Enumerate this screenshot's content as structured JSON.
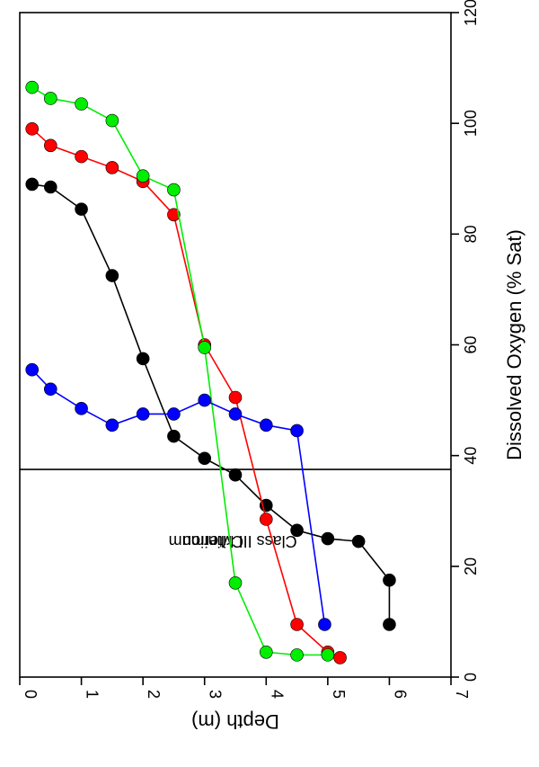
{
  "chart_data": {
    "type": "scatter",
    "orientation": "rotated-90-clockwise",
    "xlabel": "Depth (m)",
    "ylabel": "Dissolved Oxygen (% Sat)",
    "xlim": [
      0,
      7
    ],
    "ylim": [
      0,
      120
    ],
    "x_ticks": [
      "0",
      "1",
      "2",
      "3",
      "4",
      "5",
      "6",
      "7"
    ],
    "y_ticks": [
      "0",
      "20",
      "40",
      "60",
      "80",
      "100",
      "120"
    ],
    "grid": false,
    "reference_line": {
      "value": 37.5,
      "label_lines": [
        "Class III Minimum",
        "Criterion"
      ]
    },
    "series": [
      {
        "color": "#000000",
        "x": [
          0.2,
          0.5,
          1.0,
          1.5,
          2.0,
          2.5,
          3.0,
          3.5,
          4.0,
          4.5,
          5.0,
          5.5,
          6.0,
          6.0
        ],
        "y": [
          89,
          88.5,
          84.5,
          72.5,
          57.5,
          43.5,
          39.5,
          36.5,
          31,
          26.5,
          25,
          24.5,
          17.5,
          9.5
        ]
      },
      {
        "color": "#ff0000",
        "x": [
          0.2,
          0.5,
          1.0,
          1.5,
          2.0,
          2.5,
          3.0,
          3.5,
          4.0,
          4.5,
          5.0,
          5.2
        ],
        "y": [
          99,
          96,
          94,
          92,
          89.5,
          83.5,
          60,
          50.5,
          28.5,
          9.5,
          4.5,
          3.5
        ]
      },
      {
        "color": "#00ee00",
        "x": [
          0.2,
          0.5,
          1.0,
          1.5,
          2.0,
          2.5,
          3.0,
          3.5,
          4.0,
          4.5,
          5.0
        ],
        "y": [
          106.5,
          104.5,
          103.5,
          100.5,
          90.5,
          88,
          59.5,
          17,
          4.5,
          4,
          4
        ]
      },
      {
        "color": "#0000ff",
        "x": [
          0.2,
          0.5,
          1.0,
          1.5,
          2.0,
          2.5,
          3.0,
          3.5,
          4.0,
          4.5,
          4.95
        ],
        "y": [
          55.5,
          52,
          48.5,
          45.5,
          47.5,
          47.5,
          50,
          47.5,
          45.5,
          44.5,
          9.5
        ]
      }
    ]
  }
}
